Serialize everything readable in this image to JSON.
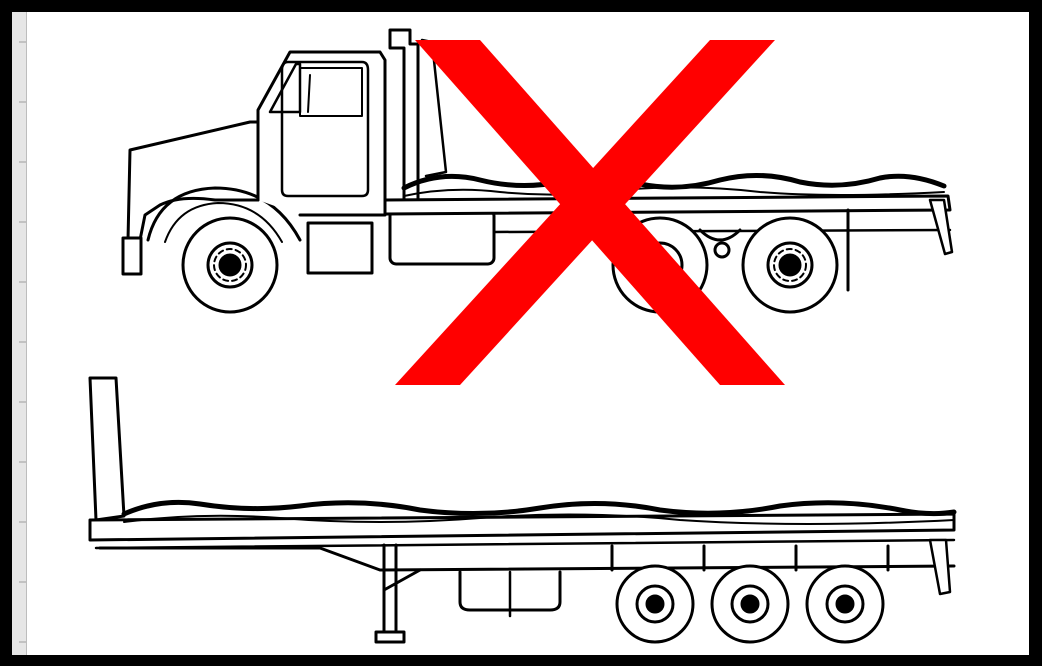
{
  "diagram": {
    "items": [
      {
        "name": "straight-truck-flatbed",
        "status": "not-allowed"
      },
      {
        "name": "flatbed-semi-trailer",
        "status": "allowed"
      }
    ],
    "mark_symbol": "X",
    "colors": {
      "frame": "#000000",
      "background": "#ffffff",
      "ruler": "#e6e6e6",
      "line_art": "#000000",
      "cross_mark": "#ff0000"
    }
  }
}
